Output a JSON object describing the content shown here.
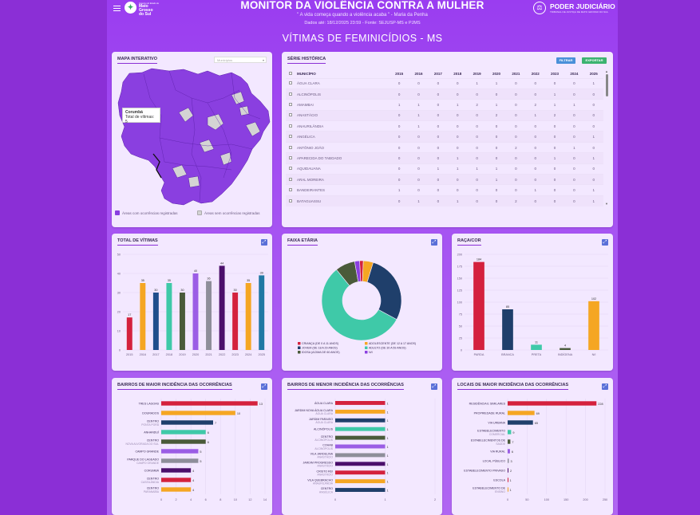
{
  "header": {
    "title": "MONITOR DA VIOLÊNCIA CONTRA A MULHER",
    "quote": "\" A vida começa quando a violência acaba \" - Maria da Penha",
    "dados": "Dados até: 18/12/2025 23:59 - Fonte: SEJUSP-MS e PJMS",
    "subtitle": "VÍTIMAS DE FEMINICÍDIOS - MS",
    "logo_left": [
      "Governo do Estado de",
      "Mato",
      "Grosso",
      "do Sul"
    ],
    "logo_right": "PODER JUDICIÁRIO",
    "logo_right_sub": "TRIBUNAL DE JUSTIÇA DE MATO GROSSO DO SUL"
  },
  "map": {
    "title": "MAPA INTERATIVO",
    "select_placeholder": "Municípios",
    "tooltip_name": "Corumbá",
    "tooltip_value": "Total de vítimas: 5",
    "legend_with": "Áreas com ocorrências registradas",
    "legend_without": "Áreas sem ocorrências registradas",
    "color_with": "#8a3fe0",
    "color_without": "#d4d4d4"
  },
  "series": {
    "title": "SÉRIE HISTÓRICA",
    "filter_label": "FILTRAR",
    "export_label": "EXPORTAR",
    "col_mun": "MUNICÍPIO",
    "years": [
      "2015",
      "2016",
      "2017",
      "2018",
      "2019",
      "2020",
      "2021",
      "2022",
      "2023",
      "2024",
      "2025"
    ],
    "rows": [
      {
        "name": "ÁGUA CLARA",
        "v": [
          0,
          0,
          0,
          0,
          1,
          1,
          0,
          0,
          0,
          0,
          1
        ]
      },
      {
        "name": "ALCINÓPOLIS",
        "v": [
          0,
          0,
          0,
          0,
          0,
          0,
          0,
          0,
          1,
          0,
          0
        ]
      },
      {
        "name": "AMAMBAI",
        "v": [
          1,
          1,
          0,
          1,
          2,
          1,
          0,
          2,
          1,
          1,
          0
        ]
      },
      {
        "name": "ANASTÁCIO",
        "v": [
          0,
          1,
          0,
          0,
          0,
          2,
          0,
          1,
          2,
          0,
          0
        ]
      },
      {
        "name": "ANAURILÂNDIA",
        "v": [
          0,
          1,
          0,
          0,
          0,
          0,
          0,
          0,
          0,
          0,
          0
        ]
      },
      {
        "name": "ANGÉLICA",
        "v": [
          0,
          0,
          0,
          0,
          0,
          0,
          0,
          0,
          0,
          0,
          1
        ]
      },
      {
        "name": "ANTÔNIO JOÃO",
        "v": [
          0,
          0,
          0,
          0,
          0,
          0,
          2,
          0,
          0,
          1,
          0
        ]
      },
      {
        "name": "APARECIDA DO TABOADO",
        "v": [
          0,
          0,
          0,
          1,
          0,
          0,
          0,
          0,
          1,
          0,
          1
        ]
      },
      {
        "name": "AQUIDAUANA",
        "v": [
          0,
          0,
          1,
          1,
          1,
          1,
          0,
          0,
          0,
          0,
          0
        ]
      },
      {
        "name": "ARAL MOREIRA",
        "v": [
          0,
          0,
          0,
          0,
          0,
          1,
          0,
          0,
          0,
          0,
          0
        ]
      },
      {
        "name": "BANDEIRANTES",
        "v": [
          1,
          0,
          0,
          0,
          0,
          0,
          0,
          1,
          0,
          0,
          1
        ]
      },
      {
        "name": "BATAGUASSU",
        "v": [
          0,
          1,
          0,
          1,
          0,
          0,
          2,
          0,
          0,
          0,
          1
        ]
      }
    ]
  },
  "total": {
    "title": "TOTAL DE VÍTIMAS",
    "chart_data": {
      "type": "bar",
      "categories": [
        "2015",
        "2016",
        "2017",
        "2018",
        "2019",
        "2020",
        "2021",
        "2022",
        "2023",
        "2024",
        "2025"
      ],
      "values": [
        17,
        35,
        30,
        35,
        30,
        40,
        36,
        44,
        30,
        35,
        39
      ],
      "ylim": [
        0,
        50
      ],
      "yticks": [
        0,
        10,
        20,
        30,
        40,
        50
      ],
      "colors": [
        "#d4213d",
        "#f5a623",
        "#1f4e8c",
        "#3fc9a8",
        "#4a5a3a",
        "#9b5de5",
        "#8e8e9a",
        "#4b0f6b",
        "#d4213d",
        "#f5a623",
        "#1f78a4"
      ]
    }
  },
  "faixa": {
    "title": "FAIXA ETÁRIA",
    "chart_data": {
      "type": "pie",
      "labels": [
        "CRIANÇA (DE 0 A 11 ANOS)",
        "ADOLESCENTE (DE 12 A 17 ANOS)",
        "JOVEM (DE 18 A 29 ANOS)",
        "ADULTO (DE 30 A 59 ANOS)",
        "IDOSA (ACIMA DE 60 ANOS)",
        "N/I"
      ],
      "values": [
        1.5,
        4,
        28,
        56,
        8,
        2
      ],
      "colors": [
        "#d4213d",
        "#f5a623",
        "#1f3f6b",
        "#3fc9a8",
        "#4a5a3a",
        "#8a3fe0"
      ]
    }
  },
  "raca": {
    "title": "RAÇA/COR",
    "chart_data": {
      "type": "bar",
      "categories": [
        "PARDA",
        "BRANCA",
        "PRETA",
        "INDÍGENA",
        "N/I"
      ],
      "values": [
        184,
        85,
        11,
        4,
        102
      ],
      "ylim": [
        0,
        200
      ],
      "yticks": [
        0,
        25,
        50,
        75,
        100,
        125,
        150,
        175,
        200
      ],
      "colors": [
        "#d4213d",
        "#1f3f6b",
        "#3fc9a8",
        "#4a5a3a",
        "#f5a623"
      ]
    }
  },
  "maior": {
    "title": "BAIRROS DE MAIOR INCIDÊNCIA DAS OCORRÊNCIAS",
    "chart_data": {
      "type": "bar",
      "orientation": "horizontal",
      "categories": [
        [
          "TRES LAGOAS",
          ""
        ],
        [
          "DOURADOS",
          ""
        ],
        [
          "CENTRO",
          "PONTA PORÃ"
        ],
        [
          "ANHANDUÍ",
          ""
        ],
        [
          "CENTRO",
          "NOVA ALVORADA DO SUL"
        ],
        [
          "CAMPO GRANDE",
          ""
        ],
        [
          "PARQUE DO LAGEADO",
          "CAMPO GRANDE"
        ],
        [
          "CORUMBÁ",
          ""
        ],
        [
          "CENTRO",
          "CASSILÂNDIA"
        ],
        [
          "CENTRO",
          "PARANAÍBA"
        ]
      ],
      "values": [
        13,
        10,
        7,
        6,
        6,
        5,
        5,
        4,
        4,
        4
      ],
      "xlim": [
        0,
        14
      ],
      "xticks": [
        0,
        2,
        4,
        6,
        8,
        10,
        12,
        14
      ],
      "colors": [
        "#d4213d",
        "#f5a623",
        "#1f3f6b",
        "#3fc9a8",
        "#4a5a3a",
        "#9b5de5",
        "#8e8e9a",
        "#4b0f6b",
        "#d4213d",
        "#f5a623"
      ]
    }
  },
  "menor": {
    "title": "BAIRROS DE MENOR INCIDÊNCIA DAS OCORRÊNCIAS",
    "chart_data": {
      "type": "bar",
      "orientation": "horizontal",
      "categories": [
        [
          "ÁGUA CLARA",
          ""
        ],
        [
          "JARDIM NOVA ÁGUA CLARA",
          "ÁGUA CLARA"
        ],
        [
          "JARDIM PARAISO",
          "ÁGUA CLARA"
        ],
        [
          "ALCINÓPOLIS",
          ""
        ],
        [
          "CENTRO",
          "ALCINÓPOLIS"
        ],
        [
          "COHAB",
          "ALCINÓPOLIS"
        ],
        [
          "VILA JARDELINA",
          "ANASTÁCIO"
        ],
        [
          "JARDIM PROGRESSO",
          "ANASTÁCIO"
        ],
        [
          "CRISTO REI",
          "ANASTÁCIO"
        ],
        [
          "VILA QUEBRACHO",
          "ANAURILÂNDIA"
        ],
        [
          "CENTRO",
          "ANGÉLICA"
        ]
      ],
      "values": [
        1,
        1,
        1,
        1,
        1,
        1,
        1,
        1,
        1,
        1,
        1
      ],
      "xlim": [
        0,
        2
      ],
      "xticks": [
        0,
        1,
        2
      ],
      "colors": [
        "#d4213d",
        "#f5a623",
        "#1f3f6b",
        "#3fc9a8",
        "#4a5a3a",
        "#9b5de5",
        "#8e8e9a",
        "#4b0f6b",
        "#d4213d",
        "#f5a623",
        "#1f3f6b"
      ]
    }
  },
  "locais": {
    "title": "LOCAIS DE MAIOR INCIDÊNCIA DAS OCORRÊNCIAS",
    "chart_data": {
      "type": "bar",
      "orientation": "horizontal",
      "categories": [
        [
          "RESIDÊNCIA E SIMILARES",
          ""
        ],
        [
          "PROPRIEDADE RURAL",
          ""
        ],
        [
          "VIA URBANA",
          ""
        ],
        [
          "ESTABELECIMENTO",
          "COMERCIAL"
        ],
        [
          "ESTABELECIMENTOS DE",
          "SAÚDE"
        ],
        [
          "VIA RURAL",
          ""
        ],
        [
          "LOCAL PÚBLICO",
          ""
        ],
        [
          "ESTABELECIMENTO PRIVADO",
          ""
        ],
        [
          "ESCOLA",
          ""
        ],
        [
          "ESTABELECIMENTO DE",
          "ENSINO"
        ]
      ],
      "values": [
        228,
        69,
        65,
        9,
        7,
        6,
        3,
        2,
        1,
        1
      ],
      "xlim": [
        0,
        250
      ],
      "xticks": [
        0,
        50,
        100,
        150,
        200,
        250
      ],
      "colors": [
        "#d4213d",
        "#f5a623",
        "#1f3f6b",
        "#3fc9a8",
        "#4a5a3a",
        "#9b5de5",
        "#8e8e9a",
        "#4b0f6b",
        "#d4213d",
        "#f5a623"
      ]
    }
  }
}
